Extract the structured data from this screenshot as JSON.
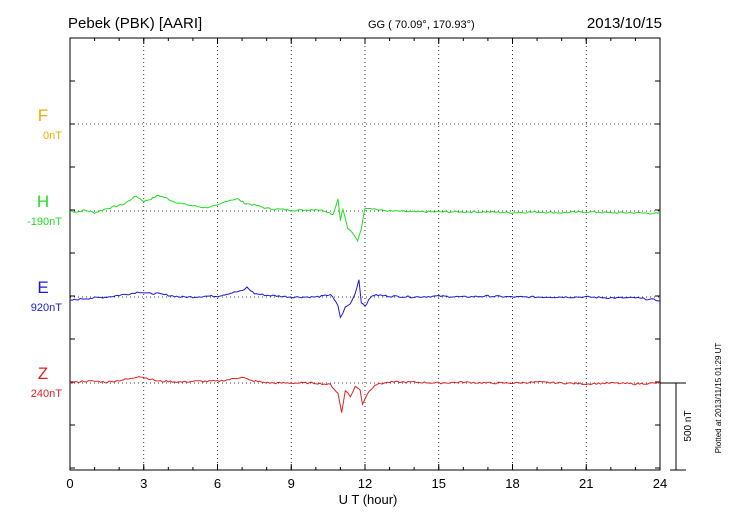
{
  "header": {
    "station": "Pebek (PBK)  [AARI]",
    "coords": "GG ( 70.09°, 170.93°)",
    "date": "2013/10/15"
  },
  "footer": {
    "plotted_note": "Plotted at 2013/11/15 01:29 UT"
  },
  "chart_data": {
    "type": "line",
    "xlabel": "U T (hour)",
    "xlim": [
      0,
      24
    ],
    "x_ticks": [
      "0",
      "3",
      "6",
      "9",
      "12",
      "15",
      "18",
      "21",
      "24"
    ],
    "grid": true,
    "scale_bar": {
      "label": "500 nT",
      "value": 500
    },
    "series": [
      {
        "name": "F",
        "baseline_label": "0nT",
        "color": "#f5a800",
        "values": []
      },
      {
        "name": "H",
        "baseline_label": "-190nT",
        "color": "#22dd22",
        "points": [
          [
            0,
            0
          ],
          [
            0.3,
            -5
          ],
          [
            0.6,
            5
          ],
          [
            1.0,
            -10
          ],
          [
            1.4,
            10
          ],
          [
            1.8,
            25
          ],
          [
            2.2,
            40
          ],
          [
            2.5,
            70
          ],
          [
            2.7,
            85
          ],
          [
            3.0,
            55
          ],
          [
            3.3,
            70
          ],
          [
            3.6,
            90
          ],
          [
            3.9,
            75
          ],
          [
            4.2,
            55
          ],
          [
            4.6,
            40
          ],
          [
            5.0,
            30
          ],
          [
            5.5,
            20
          ],
          [
            6.0,
            30
          ],
          [
            6.4,
            60
          ],
          [
            6.8,
            70
          ],
          [
            7.1,
            45
          ],
          [
            7.5,
            35
          ],
          [
            8.0,
            15
          ],
          [
            8.5,
            10
          ],
          [
            9.0,
            5
          ],
          [
            9.5,
            5
          ],
          [
            10.0,
            10
          ],
          [
            10.4,
            0
          ],
          [
            10.7,
            -20
          ],
          [
            10.9,
            70
          ],
          [
            11.0,
            -50
          ],
          [
            11.1,
            10
          ],
          [
            11.3,
            -100
          ],
          [
            11.5,
            -130
          ],
          [
            11.7,
            -170
          ],
          [
            11.85,
            -100
          ],
          [
            12.0,
            20
          ],
          [
            12.3,
            15
          ],
          [
            12.6,
            5
          ],
          [
            13.0,
            0
          ],
          [
            14.0,
            -5
          ],
          [
            15.0,
            -5
          ],
          [
            16.0,
            -5
          ],
          [
            17.0,
            -5
          ],
          [
            18.0,
            -10
          ],
          [
            19.0,
            -5
          ],
          [
            20.0,
            -10
          ],
          [
            21.0,
            -5
          ],
          [
            22.0,
            -10
          ],
          [
            23.0,
            -10
          ],
          [
            24.0,
            -15
          ]
        ]
      },
      {
        "name": "E",
        "baseline_label": "920nT",
        "color": "#1a1ad6",
        "points": [
          [
            0,
            -20
          ],
          [
            0.5,
            -10
          ],
          [
            1.0,
            -5
          ],
          [
            1.5,
            0
          ],
          [
            2.0,
            10
          ],
          [
            2.5,
            20
          ],
          [
            2.8,
            30
          ],
          [
            3.2,
            20
          ],
          [
            3.5,
            20
          ],
          [
            4.0,
            10
          ],
          [
            4.5,
            0
          ],
          [
            5.0,
            0
          ],
          [
            5.5,
            5
          ],
          [
            6.0,
            5
          ],
          [
            6.3,
            15
          ],
          [
            6.6,
            25
          ],
          [
            7.0,
            35
          ],
          [
            7.2,
            55
          ],
          [
            7.5,
            20
          ],
          [
            8.0,
            10
          ],
          [
            8.5,
            5
          ],
          [
            9.0,
            0
          ],
          [
            9.5,
            0
          ],
          [
            10.0,
            0
          ],
          [
            10.3,
            5
          ],
          [
            10.6,
            15
          ],
          [
            10.9,
            -50
          ],
          [
            11.0,
            -120
          ],
          [
            11.2,
            -60
          ],
          [
            11.4,
            -40
          ],
          [
            11.6,
            20
          ],
          [
            11.75,
            100
          ],
          [
            11.85,
            -30
          ],
          [
            12.0,
            -50
          ],
          [
            12.3,
            10
          ],
          [
            12.6,
            10
          ],
          [
            13.0,
            5
          ],
          [
            14.0,
            0
          ],
          [
            15.0,
            5
          ],
          [
            16.0,
            0
          ],
          [
            17.0,
            5
          ],
          [
            18.0,
            0
          ],
          [
            19.0,
            0
          ],
          [
            20.0,
            0
          ],
          [
            21.0,
            0
          ],
          [
            22.0,
            -5
          ],
          [
            23.0,
            -5
          ],
          [
            24.0,
            -20
          ]
        ]
      },
      {
        "name": "Z",
        "baseline_label": "240nT",
        "color": "#dd2222",
        "points": [
          [
            0,
            0
          ],
          [
            0.5,
            10
          ],
          [
            1.0,
            10
          ],
          [
            1.5,
            5
          ],
          [
            2.0,
            15
          ],
          [
            2.5,
            25
          ],
          [
            2.8,
            40
          ],
          [
            3.2,
            25
          ],
          [
            3.6,
            10
          ],
          [
            4.0,
            10
          ],
          [
            4.5,
            5
          ],
          [
            5.0,
            10
          ],
          [
            5.5,
            10
          ],
          [
            6.0,
            10
          ],
          [
            6.5,
            20
          ],
          [
            7.0,
            35
          ],
          [
            7.3,
            15
          ],
          [
            7.8,
            5
          ],
          [
            8.2,
            0
          ],
          [
            9.0,
            0
          ],
          [
            10.0,
            0
          ],
          [
            10.6,
            -10
          ],
          [
            10.9,
            -60
          ],
          [
            11.05,
            -170
          ],
          [
            11.2,
            -40
          ],
          [
            11.4,
            -80
          ],
          [
            11.6,
            -20
          ],
          [
            11.8,
            -40
          ],
          [
            11.9,
            -120
          ],
          [
            12.1,
            -60
          ],
          [
            12.4,
            -10
          ],
          [
            12.8,
            0
          ],
          [
            13.0,
            5
          ],
          [
            14.0,
            5
          ],
          [
            15.0,
            0
          ],
          [
            16.0,
            5
          ],
          [
            17.0,
            0
          ],
          [
            18.0,
            0
          ],
          [
            19.0,
            5
          ],
          [
            20.0,
            0
          ],
          [
            21.0,
            -5
          ],
          [
            22.0,
            0
          ],
          [
            23.0,
            -5
          ],
          [
            24.0,
            0
          ]
        ]
      }
    ]
  }
}
